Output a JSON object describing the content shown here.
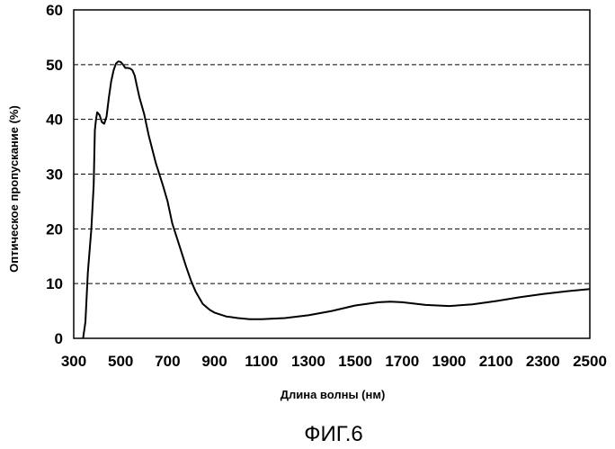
{
  "chart_data": {
    "type": "line",
    "title": "",
    "xlabel": "Длина волны (нм)",
    "ylabel": "Оптическое пропускание (%)",
    "xlim": [
      300,
      2500
    ],
    "ylim": [
      0,
      60
    ],
    "xticks": [
      300,
      500,
      700,
      900,
      1100,
      1300,
      1500,
      1700,
      1900,
      2100,
      2300,
      2500
    ],
    "yticks": [
      0,
      10,
      20,
      30,
      40,
      50,
      60
    ],
    "grid": "horizontal dashed",
    "figure_label": "ФИГ.6",
    "series": [
      {
        "color": "#000000",
        "x": [
          340,
          350,
          360,
          375,
          385,
          390,
          395,
          400,
          410,
          420,
          430,
          440,
          450,
          460,
          470,
          480,
          490,
          500,
          510,
          520,
          530,
          540,
          550,
          560,
          570,
          580,
          600,
          620,
          650,
          680,
          700,
          720,
          750,
          780,
          800,
          820,
          850,
          880,
          900,
          950,
          1000,
          1050,
          1100,
          1200,
          1300,
          1400,
          1500,
          1600,
          1650,
          1700,
          1800,
          1900,
          2000,
          2100,
          2200,
          2300,
          2400,
          2500
        ],
        "y": [
          0,
          3,
          12,
          20,
          28,
          38,
          40,
          41.3,
          40.8,
          39.5,
          39.2,
          40.5,
          44,
          47,
          49,
          50.2,
          50.6,
          50.5,
          50,
          49.4,
          49.4,
          49.3,
          49,
          48,
          46,
          44,
          41,
          37,
          32,
          28,
          25,
          21,
          17,
          13,
          10.5,
          8.5,
          6.3,
          5.2,
          4.7,
          4.0,
          3.7,
          3.5,
          3.5,
          3.7,
          4.2,
          5.0,
          6.0,
          6.6,
          6.7,
          6.6,
          6.1,
          5.9,
          6.2,
          6.8,
          7.5,
          8.1,
          8.6,
          9.0
        ]
      }
    ]
  }
}
